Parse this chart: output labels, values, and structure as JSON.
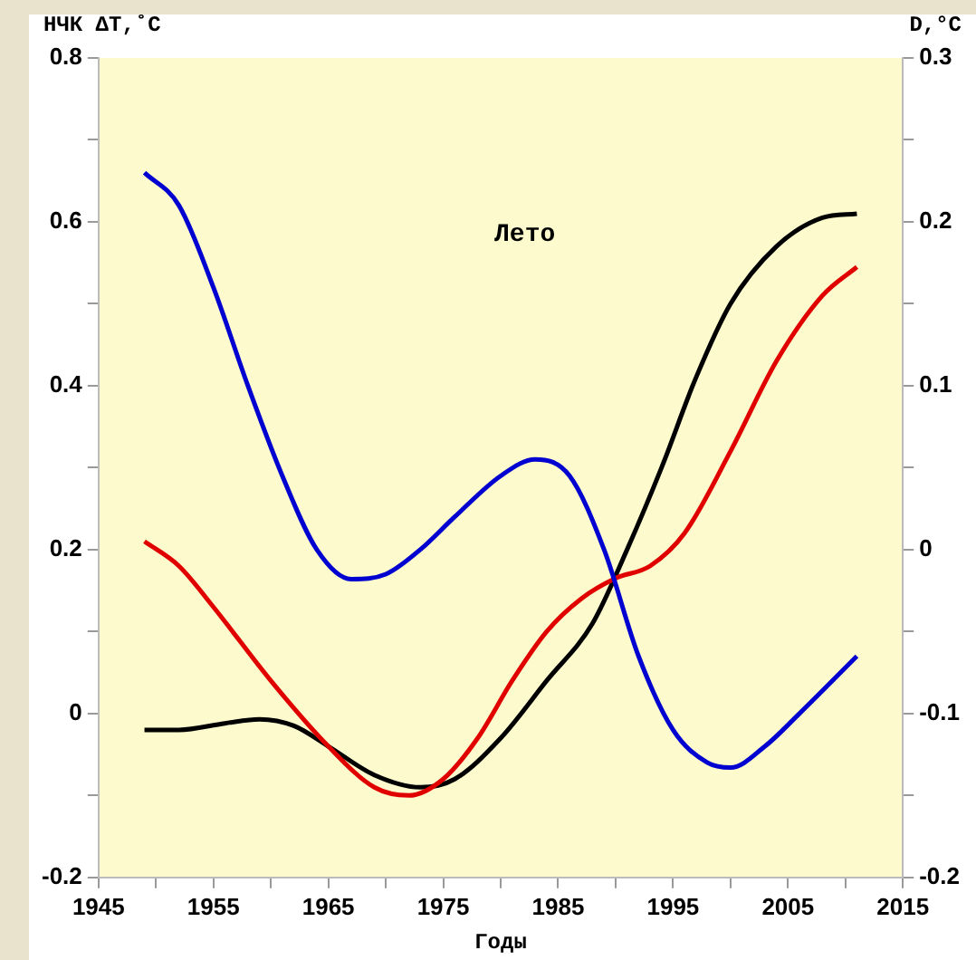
{
  "chart_data": {
    "type": "line",
    "xlabel": "Годы",
    "ylabel": "НЧК ΔT,˚C",
    "y2label": "D,°C",
    "annotations": [
      "Лето"
    ],
    "xlim": [
      1945,
      2015
    ],
    "xticks": [
      1945,
      {
        "value": 1950,
        "label": null
      },
      1955,
      {
        "value": 1960,
        "label": null
      },
      1965,
      {
        "value": 1970,
        "label": null
      },
      1975,
      {
        "value": 1980,
        "label": null
      },
      1985,
      {
        "value": 1990,
        "label": null
      },
      1995,
      {
        "value": 2000,
        "label": null
      },
      2005,
      {
        "value": 2010,
        "label": null
      },
      2015
    ],
    "ylim": [
      -0.2,
      0.8
    ],
    "yticks": [
      -0.2,
      {
        "value": -0.1,
        "label": null
      },
      0,
      {
        "value": 0.1,
        "label": null
      },
      0.2,
      {
        "value": 0.3,
        "label": null
      },
      0.4,
      {
        "value": 0.5,
        "label": null
      },
      0.6,
      {
        "value": 0.7,
        "label": null
      },
      0.8
    ],
    "y2lim": [
      -0.2,
      0.3
    ],
    "y2ticks": [
      -0.2,
      {
        "value": -0.15,
        "label": null
      },
      -0.1,
      {
        "value": -0.05,
        "label": null
      },
      0,
      {
        "value": 0.05,
        "label": null
      },
      0.1,
      {
        "value": 0.15,
        "label": null
      },
      0.2,
      {
        "value": 0.25,
        "label": null
      },
      0.3
    ],
    "legend": false,
    "marker": "none",
    "line_style": "solid",
    "series": [
      {
        "color": "#0000d0",
        "axis": "y2",
        "x": [
          1949,
          1952,
          1955,
          1958,
          1961,
          1964,
          1967,
          1970,
          1973,
          1976,
          1980,
          1983,
          1986,
          1989,
          1992,
          1995,
          1998,
          2000,
          2003,
          2006,
          2011
        ],
        "values": [
          0.23,
          0.21,
          0.16,
          0.1,
          0.045,
          0,
          -0.018,
          -0.015,
          0,
          0.02,
          0.045,
          0.055,
          0.045,
          0,
          -0.065,
          -0.11,
          -0.13,
          -0.133,
          -0.12,
          -0.1,
          -0.065
        ]
      },
      {
        "color": "#e00000",
        "x": [
          1949,
          1952,
          1955,
          1960,
          1965,
          1969,
          1972,
          1975,
          1978,
          1981,
          1984,
          1987,
          1990,
          1993,
          1996,
          2000,
          2004,
          2008,
          2011
        ],
        "values": [
          0.21,
          0.18,
          0.13,
          0.04,
          -0.04,
          -0.09,
          -0.1,
          -0.08,
          -0.03,
          0.04,
          0.1,
          0.14,
          0.165,
          0.18,
          0.22,
          0.32,
          0.43,
          0.51,
          0.545
        ]
      },
      {
        "color": "#000000",
        "x": [
          1949,
          1952,
          1956,
          1959,
          1962,
          1965,
          1969,
          1973,
          1976,
          1980,
          1984,
          1988,
          1991,
          1994,
          1997,
          2000,
          2004,
          2008,
          2011
        ],
        "values": [
          -0.02,
          -0.02,
          -0.012,
          -0.007,
          -0.015,
          -0.04,
          -0.075,
          -0.09,
          -0.08,
          -0.03,
          0.04,
          0.11,
          0.2,
          0.3,
          0.41,
          0.5,
          0.57,
          0.605,
          0.61
        ]
      }
    ]
  }
}
